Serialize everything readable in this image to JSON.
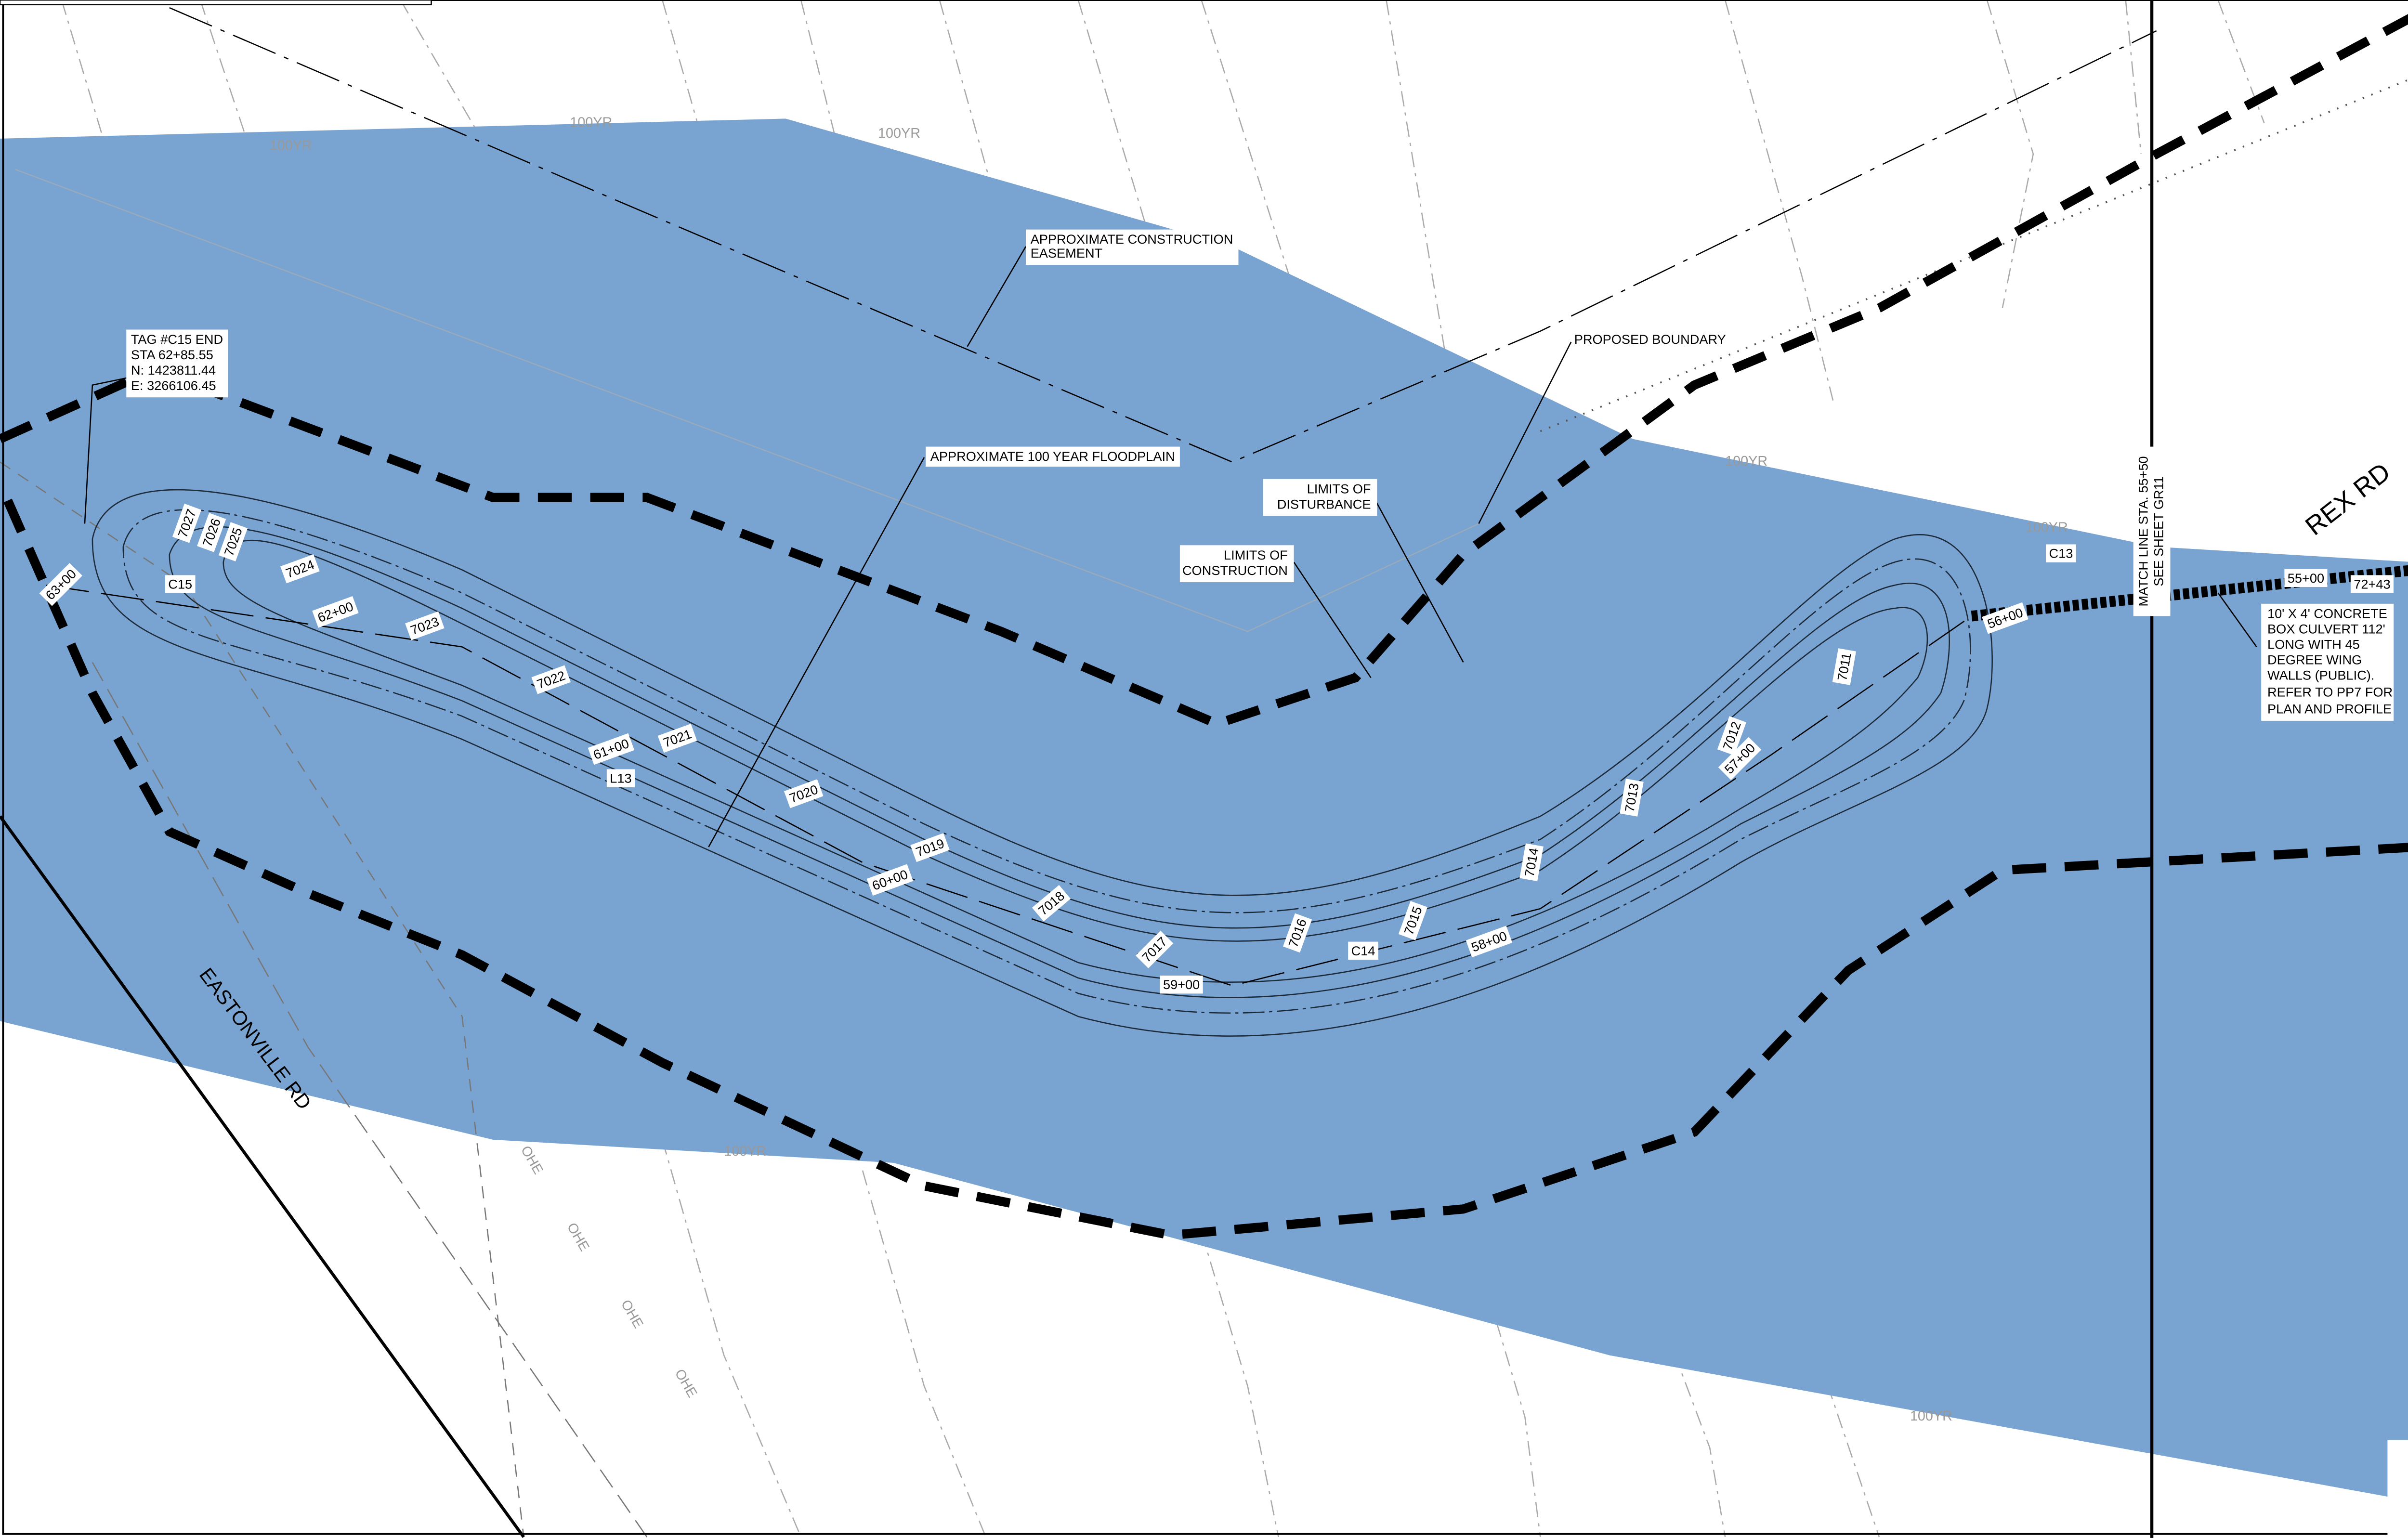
{
  "callouts": {
    "tag_c15": [
      "TAG #C15 END",
      "STA 62+85.55",
      "N: 1423811.44",
      "E: 3266106.45"
    ],
    "easement": [
      "APPROXIMATE CONSTRUCTION",
      "EASEMENT"
    ],
    "floodplain": [
      "APPROXIMATE 100 YEAR FLOODPLAIN"
    ],
    "proposed_boundary": [
      "PROPOSED BOUNDARY"
    ],
    "limits_disturbance": [
      "LIMITS OF",
      "DISTURBANCE"
    ],
    "limits_construction": [
      "LIMITS OF",
      "CONSTRUCTION"
    ],
    "culvert": [
      "10' X 4' CONCRETE",
      "BOX CULVERT 112'",
      "LONG WITH 45",
      "DEGREE WING",
      "WALLS (PUBLIC).",
      "REFER TO PP7 FOR",
      "PLAN AND PROFILE"
    ],
    "match_line": [
      "MATCH LINE STA. 55+50",
      "SEE SHEET GR11"
    ]
  },
  "roads": [
    "EASTONVILLE RD",
    "REX RD"
  ],
  "stations": [
    "63+00",
    "62+00",
    "61+00",
    "60+00",
    "59+00",
    "58+00",
    "57+00",
    "56+00",
    "55+00",
    "72+43"
  ],
  "contours": [
    "7027",
    "7026",
    "7025",
    "7024",
    "7023",
    "7022",
    "7021",
    "7020",
    "7019",
    "7018",
    "7017",
    "7016",
    "7015",
    "7014",
    "7013",
    "7012",
    "7011"
  ],
  "tags": [
    "C15",
    "L13",
    "C14",
    "C13"
  ],
  "floodplain_label": "100YR",
  "utility_label": "OHE"
}
